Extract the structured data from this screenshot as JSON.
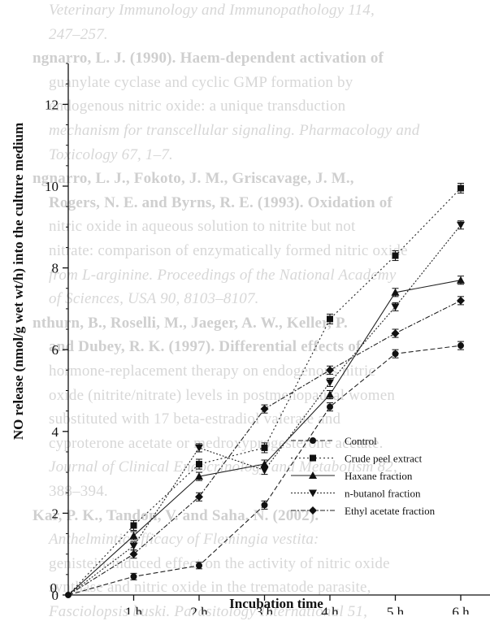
{
  "background_text": [
    {
      "text": "Veterinary Immunology and Immunopathology 114,",
      "style": "ital"
    },
    {
      "text": "247–257.",
      "style": "ital"
    },
    {
      "text": "ngnarro, L. J. (1990). Haem-dependent activation of",
      "style": "bold"
    },
    {
      "text": "guanylate cyclase and cyclic GMP formation by",
      "style": ""
    },
    {
      "text": "endogenous nitric oxide: a unique transduction",
      "style": ""
    },
    {
      "text": "mechanism for transcellular signaling. Pharmacology and",
      "style": "ital"
    },
    {
      "text": "Toxicology 67, 1–7.",
      "style": "ital"
    },
    {
      "text": "ngnarro, L. J., Fokoto, J. M., Griscavage, J. M.,",
      "style": "bold"
    },
    {
      "text": "Rogers, N. E. and Byrns, R. E. (1993). Oxidation of",
      "style": "bold"
    },
    {
      "text": "nitric oxide in aqueous solution to nitrite but not",
      "style": ""
    },
    {
      "text": "nitrate: comparison of enzymatically formed nitric oxide",
      "style": ""
    },
    {
      "text": "from L-arginine. Proceedings of the National Academy",
      "style": "ital"
    },
    {
      "text": "of Sciences, USA 90, 8103–8107.",
      "style": "ital"
    },
    {
      "text": "nthurn, B., Roselli, M., Jaeger, A. W., Keller, P.",
      "style": "bold"
    },
    {
      "text": "and Dubey, R. K. (1997). Differential effects of",
      "style": "bold"
    },
    {
      "text": "hormone-replacement therapy on endogenous nitric",
      "style": ""
    },
    {
      "text": "oxide (nitrite/nitrate) levels in postmenopausal women",
      "style": ""
    },
    {
      "text": "substituted with 17 beta-estradiol valerate and",
      "style": ""
    },
    {
      "text": "cyproterone acetate or medroxyprogesterone acetate.",
      "style": ""
    },
    {
      "text": "Journal of Clinical Endocrinology and Metabolism 82,",
      "style": "ital"
    },
    {
      "text": "388–394.",
      "style": ""
    },
    {
      "text": "Kar, P. K., Tandon, V. and Saha, N. (2002).",
      "style": "bold"
    },
    {
      "text": "Anthelmintic efficacy of Flemingia vestita:",
      "style": "ital"
    },
    {
      "text": "genistein-induced effect on the activity of nitric oxide",
      "style": ""
    },
    {
      "text": "synthase and nitric oxide in the trematode parasite,",
      "style": ""
    },
    {
      "text": "Fasciolopsis buski. Parasitology International 51,",
      "style": "ital"
    }
  ],
  "chart_data": {
    "type": "line",
    "title": "",
    "xlabel": "Incubation time",
    "ylabel": "NO release (nmol/g wet wt/h) into the culture medium",
    "x_categories": [
      "0",
      "1 h",
      "2 h",
      "3 h",
      "4 h",
      "5 h",
      "6 h"
    ],
    "x": [
      0,
      1,
      2,
      3,
      4,
      5,
      6
    ],
    "y_ticks": [
      "0",
      "2",
      "4",
      "6",
      "8",
      "10",
      "12"
    ],
    "ylim": [
      0,
      13
    ],
    "grid": false,
    "legend_position": "bottom-right",
    "series": [
      {
        "name": "Control",
        "marker": "circle",
        "dash": "6,3",
        "values": [
          0,
          0.45,
          0.72,
          2.2,
          4.6,
          5.9,
          6.1
        ],
        "errors": [
          0,
          0.08,
          0.08,
          0.1,
          0.1,
          0.1,
          0.1
        ]
      },
      {
        "name": "Crude peel extract",
        "marker": "square",
        "dash": "2,3",
        "values": [
          0,
          1.7,
          3.2,
          3.6,
          6.75,
          8.3,
          9.95
        ],
        "errors": [
          0,
          0.12,
          0.12,
          0.12,
          0.12,
          0.12,
          0.12
        ]
      },
      {
        "name": "Haxane fraction",
        "marker": "triangle-up",
        "dash": "",
        "values": [
          0,
          1.45,
          2.9,
          3.2,
          4.9,
          7.4,
          7.7
        ],
        "errors": [
          0,
          0.1,
          0.1,
          0.1,
          0.1,
          0.1,
          0.1
        ]
      },
      {
        "name": "n-butanol fraction",
        "marker": "triangle-down",
        "dash": "2,2",
        "values": [
          0,
          1.2,
          3.6,
          3.05,
          5.2,
          7.05,
          9.05
        ],
        "errors": [
          0,
          0.1,
          0.1,
          0.1,
          0.1,
          0.1,
          0.1
        ]
      },
      {
        "name": "Ethyl acetate fraction",
        "marker": "diamond",
        "dash": "6,2,2,2",
        "values": [
          0,
          1.0,
          2.4,
          4.55,
          5.5,
          6.4,
          7.2
        ],
        "errors": [
          0,
          0.1,
          0.1,
          0.1,
          0.1,
          0.1,
          0.1
        ]
      }
    ]
  }
}
